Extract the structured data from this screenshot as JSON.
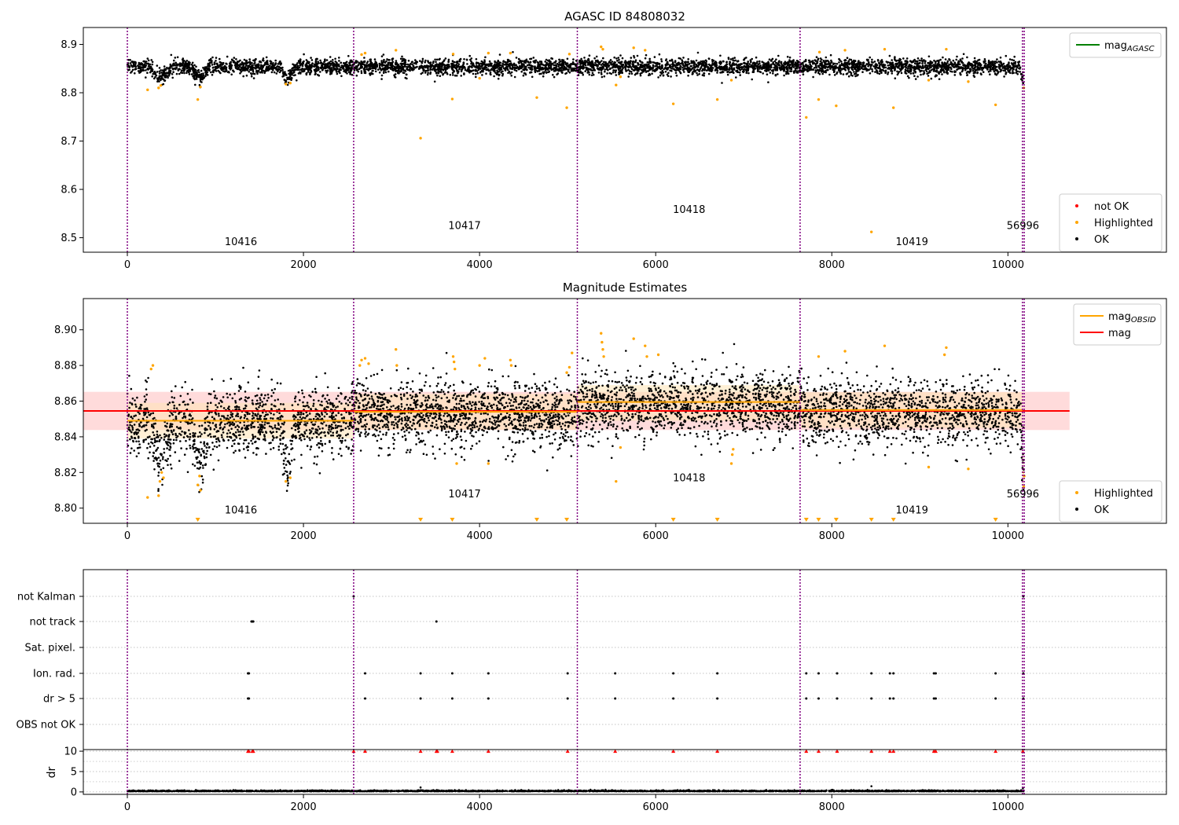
{
  "colors": {
    "ok": "#000000",
    "highlighted": "#ffa500",
    "not_ok": "#ff0000",
    "mag_agasc_line": "#008000",
    "mag_obsid_line": "#ffa500",
    "mag_line": "#ff0000",
    "obsid_divider": "#800080",
    "band_mag": "#ffcccc",
    "band_obsid": "#ffe4b5",
    "grid": "#b0b0b0"
  },
  "chart_data": [
    {
      "type": "scatter",
      "title": "AGASC ID 84808032",
      "xlim": [
        -500,
        11800
      ],
      "ylim": [
        8.47,
        8.935
      ],
      "x_ticks": [
        0,
        2000,
        4000,
        6000,
        8000,
        10000
      ],
      "y_ticks": [
        8.5,
        8.6,
        8.7,
        8.8,
        8.9
      ],
      "obsid_boundaries": [
        0,
        2570,
        5110,
        7640,
        10165,
        10185
      ],
      "obsid_labels": [
        {
          "label": "10416",
          "x": 1290,
          "y": 8.485
        },
        {
          "label": "10417",
          "x": 3830,
          "y": 8.518
        },
        {
          "label": "10418",
          "x": 6380,
          "y": 8.551
        },
        {
          "label": "10419",
          "x": 8910,
          "y": 8.485
        },
        {
          "label": "56996",
          "x": 10170,
          "y": 8.518
        }
      ],
      "series_ok": {
        "name": "OK",
        "baseline": 8.854,
        "noise": 0.008,
        "x_range": [
          0,
          10180
        ],
        "count": 4800
      },
      "series_highlighted_points": [
        [
          230,
          8.806
        ],
        [
          355,
          8.81
        ],
        [
          380,
          8.815
        ],
        [
          800,
          8.786
        ],
        [
          830,
          8.812
        ],
        [
          1800,
          8.818
        ],
        [
          1850,
          8.82
        ],
        [
          2660,
          8.879
        ],
        [
          2700,
          8.882
        ],
        [
          3050,
          8.888
        ],
        [
          3330,
          8.706
        ],
        [
          3690,
          8.787
        ],
        [
          3700,
          8.88
        ],
        [
          4000,
          8.83
        ],
        [
          4100,
          8.882
        ],
        [
          4350,
          8.882
        ],
        [
          4650,
          8.79
        ],
        [
          4990,
          8.769
        ],
        [
          5020,
          8.88
        ],
        [
          5380,
          8.895
        ],
        [
          5400,
          8.89
        ],
        [
          5550,
          8.816
        ],
        [
          5600,
          8.833
        ],
        [
          5750,
          8.893
        ],
        [
          5880,
          8.888
        ],
        [
          6200,
          8.777
        ],
        [
          6700,
          8.786
        ],
        [
          6860,
          8.826
        ],
        [
          7710,
          8.749
        ],
        [
          7850,
          8.786
        ],
        [
          7860,
          8.884
        ],
        [
          8050,
          8.773
        ],
        [
          8150,
          8.888
        ],
        [
          8450,
          8.512
        ],
        [
          8600,
          8.89
        ],
        [
          8700,
          8.769
        ],
        [
          9100,
          8.826
        ],
        [
          9300,
          8.89
        ],
        [
          9550,
          8.823
        ],
        [
          9860,
          8.775
        ],
        [
          10180,
          8.81
        ]
      ],
      "legend_top": [
        {
          "label": "mag",
          "sub": "AGASC",
          "color": "#008000"
        }
      ],
      "legend_bottom": [
        {
          "label": "not OK",
          "color": "#ff0000"
        },
        {
          "label": "Highlighted",
          "color": "#ffa500"
        },
        {
          "label": "OK",
          "color": "#000000"
        }
      ]
    },
    {
      "type": "scatter",
      "title": "Magnitude Estimates",
      "xlim": [
        -500,
        11800
      ],
      "ylim": [
        8.7915,
        8.9175
      ],
      "x_ticks": [
        0,
        2000,
        4000,
        6000,
        8000,
        10000
      ],
      "y_ticks": [
        8.8,
        8.82,
        8.84,
        8.86,
        8.88,
        8.9
      ],
      "y_tick_labels": [
        "8.80",
        "8.82",
        "8.84",
        "8.86",
        "8.88",
        "8.90"
      ],
      "obsid_boundaries": [
        0,
        2570,
        5110,
        7640,
        10165,
        10185
      ],
      "obsid_labels": [
        {
          "label": "10416",
          "x": 1290,
          "y": 8.797
        },
        {
          "label": "10417",
          "x": 3830,
          "y": 8.806
        },
        {
          "label": "10418",
          "x": 6380,
          "y": 8.815
        },
        {
          "label": "10419",
          "x": 8910,
          "y": 8.797
        },
        {
          "label": "56996",
          "x": 10170,
          "y": 8.806
        }
      ],
      "mag": {
        "value": 8.8545,
        "band": [
          8.8438,
          8.8652
        ],
        "x_range": [
          -500,
          10700
        ]
      },
      "mag_obsid": [
        {
          "x0": 0,
          "x1": 2570,
          "value": 8.849,
          "band": [
            8.839,
            8.859
          ]
        },
        {
          "x0": 2570,
          "x1": 5110,
          "value": 8.854,
          "band": [
            8.844,
            8.864
          ]
        },
        {
          "x0": 5110,
          "x1": 7640,
          "value": 8.8595,
          "band": [
            8.849,
            8.869
          ]
        },
        {
          "x0": 7640,
          "x1": 10165,
          "value": 8.855,
          "band": [
            8.845,
            8.865
          ]
        },
        {
          "x0": 10165,
          "x1": 10185,
          "value": 8.82,
          "band": [
            8.81,
            8.83
          ]
        }
      ],
      "series_ok": {
        "name": "OK",
        "baseline": 8.853,
        "noise": 0.009,
        "x_range": [
          0,
          10180
        ],
        "count": 5200
      },
      "series_highlighted_points": [
        [
          230,
          8.806
        ],
        [
          270,
          8.878
        ],
        [
          290,
          8.88
        ],
        [
          355,
          8.807
        ],
        [
          370,
          8.815
        ],
        [
          390,
          8.82
        ],
        [
          410,
          8.817
        ],
        [
          800,
          8.813
        ],
        [
          820,
          8.818
        ],
        [
          830,
          8.81
        ],
        [
          1800,
          8.815
        ],
        [
          1850,
          8.817
        ],
        [
          2640,
          8.88
        ],
        [
          2660,
          8.883
        ],
        [
          2700,
          8.884
        ],
        [
          2740,
          8.881
        ],
        [
          3050,
          8.889
        ],
        [
          3060,
          8.88
        ],
        [
          3700,
          8.885
        ],
        [
          3710,
          8.882
        ],
        [
          3720,
          8.878
        ],
        [
          3740,
          8.825
        ],
        [
          4000,
          8.88
        ],
        [
          4060,
          8.884
        ],
        [
          4100,
          8.825
        ],
        [
          4350,
          8.883
        ],
        [
          4360,
          8.88
        ],
        [
          4990,
          8.876
        ],
        [
          5020,
          8.879
        ],
        [
          5050,
          8.887
        ],
        [
          5380,
          8.898
        ],
        [
          5390,
          8.893
        ],
        [
          5400,
          8.889
        ],
        [
          5410,
          8.885
        ],
        [
          5550,
          8.815
        ],
        [
          5600,
          8.834
        ],
        [
          5750,
          8.895
        ],
        [
          5880,
          8.891
        ],
        [
          5900,
          8.885
        ],
        [
          6030,
          8.886
        ],
        [
          6860,
          8.825
        ],
        [
          6870,
          8.83
        ],
        [
          6880,
          8.833
        ],
        [
          7850,
          8.885
        ],
        [
          8150,
          8.888
        ],
        [
          8600,
          8.891
        ],
        [
          9100,
          8.823
        ],
        [
          9300,
          8.89
        ],
        [
          9280,
          8.886
        ],
        [
          9550,
          8.822
        ],
        [
          10180,
          8.812
        ],
        [
          10185,
          8.818
        ]
      ],
      "out_of_range_x": [
        800,
        3330,
        3690,
        4650,
        4990,
        6200,
        6700,
        7710,
        7850,
        8050,
        8450,
        8700,
        9860
      ],
      "legend_top": [
        {
          "label": "mag",
          "sub": "OBSID",
          "color": "#ffa500"
        },
        {
          "label": "mag",
          "sub": "",
          "color": "#ff0000"
        }
      ],
      "legend_bottom": [
        {
          "label": "Highlighted",
          "color": "#ffa500"
        },
        {
          "label": "OK",
          "color": "#000000"
        }
      ]
    },
    {
      "type": "scatter",
      "title": "",
      "xlim": [
        -500,
        11800
      ],
      "x_ticks": [
        0,
        2000,
        4000,
        6000,
        8000,
        10000
      ],
      "obsid_boundaries": [
        0,
        2570,
        5110,
        7640,
        10165,
        10185
      ],
      "flag_rows": [
        "not Kalman",
        "not track",
        "Sat. pixel.",
        "Ion. rad.",
        "dr > 5",
        "OBS not OK"
      ],
      "flag_points": {
        "not Kalman": [
          2570,
          10175
        ],
        "not track": [
          1410,
          1420,
          1430,
          3510
        ],
        "Sat. pixel.": [],
        "Ion. rad.": [
          1370,
          1380,
          2700,
          3330,
          3690,
          4100,
          5000,
          5540,
          6200,
          6700,
          7710,
          7850,
          8060,
          8450,
          8660,
          8700,
          9160,
          9180,
          9860,
          10175
        ],
        "dr > 5": [
          1370,
          1380,
          2700,
          3330,
          3690,
          4100,
          5000,
          5540,
          6200,
          6700,
          7710,
          7850,
          8060,
          8450,
          8660,
          8700,
          9160,
          9180,
          9860,
          10175
        ],
        "OBS not OK": []
      },
      "dr": {
        "ylabel": "dr",
        "y_ticks": [
          0,
          5,
          10
        ],
        "ylim": [
          -0.6,
          10.4
        ],
        "baseline": 0.12,
        "noise": 0.12,
        "x_range": [
          0,
          10180
        ],
        "count": 4000,
        "spikes": [
          [
            3330,
            1.1
          ],
          [
            8450,
            1.4
          ],
          [
            10170,
            0.9
          ]
        ],
        "capped_points": [
          1370,
          1380,
          1420,
          1430,
          2570,
          2700,
          3330,
          3510,
          3520,
          3690,
          4100,
          5000,
          5540,
          6200,
          6700,
          7710,
          7850,
          8060,
          8450,
          8660,
          8700,
          9160,
          9180,
          9860,
          10170
        ]
      }
    }
  ]
}
